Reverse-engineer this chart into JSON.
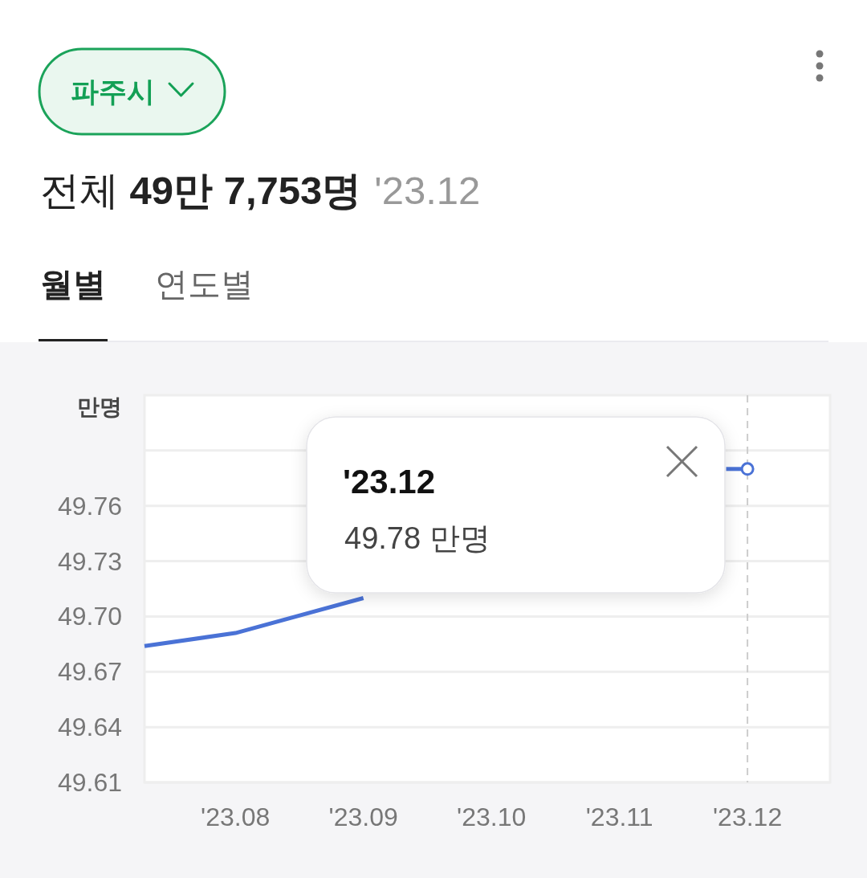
{
  "chart_data": {
    "type": "line",
    "title": "전체 49만 7,753명",
    "subtitle": "'23.12",
    "ylabel": "만명",
    "series": [
      {
        "color": "#4a72d6",
        "marker": "none",
        "x": [
          "2023-07-10",
          "2023-08",
          "2023-09"
        ],
        "values": [
          49.684,
          49.691,
          49.71
        ]
      },
      {
        "color": "#4a72d6",
        "marker": "none",
        "x": [
          "2023-11-26",
          "2023-12"
        ],
        "values": [
          49.78,
          49.78
        ]
      },
      {
        "type": "scatter",
        "color": "#4a72d6",
        "marker": "circle",
        "x": [
          "2023-12"
        ],
        "values": [
          49.78
        ]
      }
    ],
    "xlim": [
      "2023-07-10",
      "2023-12-21"
    ],
    "xticks": [
      {
        "value": "2023-08",
        "label": "'23.08"
      },
      {
        "value": "2023-09",
        "label": "'23.09"
      },
      {
        "value": "2023-10",
        "label": "'23.10"
      },
      {
        "value": "2023-11",
        "label": "'23.11"
      },
      {
        "value": "2023-12",
        "label": "'23.12"
      }
    ],
    "ylim": [
      49.61,
      49.82
    ],
    "yticks": [
      49.61,
      49.64,
      49.67,
      {
        "value": 49.7,
        "label": "49.70"
      },
      49.73,
      49.76,
      {
        "value": 49.79,
        "label": null
      }
    ],
    "grid": "y",
    "ref_lines": [
      {
        "axis": "x",
        "value": "2023-12",
        "color": "#cccccc",
        "line_style": "dashed"
      }
    ],
    "annotations": [
      "파주시",
      "월별",
      "연도별",
      "'23.12",
      "49.78 만명"
    ]
  }
}
